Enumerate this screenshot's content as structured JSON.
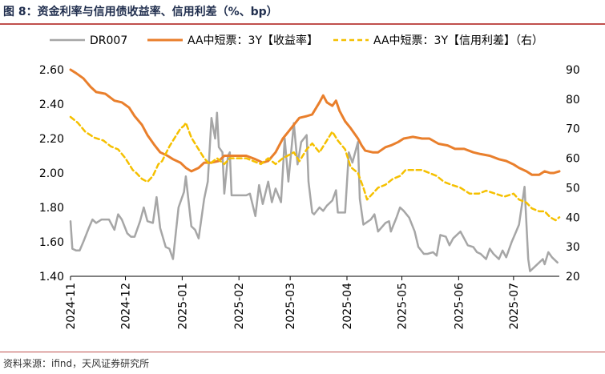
{
  "figure": {
    "title": "图 8：资金利率与信用债收益率、信用利差（%、bp）",
    "source": "资料来源：ifind，天风证券研究所"
  },
  "chart_data": {
    "type": "line",
    "title": "资金利率与信用债收益率、信用利差（%、bp）",
    "x_tick_labels": [
      "2024-11",
      "2024-12",
      "2025-01",
      "2025-02",
      "2025-03",
      "2025-04",
      "2025-05",
      "2025-06",
      "2025-07"
    ],
    "x_range": [
      "2024-11-01",
      "2025-07-26"
    ],
    "y_left": {
      "range": [
        1.4,
        2.6
      ],
      "ticks": [
        "1.40",
        "1.60",
        "1.80",
        "2.00",
        "2.20",
        "2.40",
        "2.60"
      ]
    },
    "y_right": {
      "range": [
        20,
        90
      ],
      "ticks": [
        "20",
        "30",
        "40",
        "50",
        "60",
        "70",
        "80",
        "90"
      ]
    },
    "grid": false,
    "legend_position": "top",
    "series": [
      {
        "name": "DR007",
        "axis": "left",
        "color": "#a6a6a6",
        "style": "solid",
        "points": [
          [
            "2024-11-01",
            1.72
          ],
          [
            "2024-11-02",
            1.56
          ],
          [
            "2024-11-04",
            1.55
          ],
          [
            "2024-11-06",
            1.55
          ],
          [
            "2024-11-08",
            1.6
          ],
          [
            "2024-11-11",
            1.68
          ],
          [
            "2024-11-13",
            1.73
          ],
          [
            "2024-11-15",
            1.71
          ],
          [
            "2024-11-18",
            1.73
          ],
          [
            "2024-11-20",
            1.73
          ],
          [
            "2024-11-22",
            1.73
          ],
          [
            "2024-11-25",
            1.67
          ],
          [
            "2024-11-27",
            1.76
          ],
          [
            "2024-11-29",
            1.73
          ],
          [
            "2024-12-02",
            1.65
          ],
          [
            "2024-12-04",
            1.63
          ],
          [
            "2024-12-06",
            1.63
          ],
          [
            "2024-12-09",
            1.72
          ],
          [
            "2024-12-11",
            1.8
          ],
          [
            "2024-12-13",
            1.72
          ],
          [
            "2024-12-16",
            1.71
          ],
          [
            "2024-12-18",
            1.86
          ],
          [
            "2024-12-20",
            1.68
          ],
          [
            "2024-12-23",
            1.57
          ],
          [
            "2024-12-25",
            1.56
          ],
          [
            "2024-12-27",
            1.5
          ],
          [
            "2024-12-30",
            1.8
          ],
          [
            "2025-01-02",
            1.89
          ],
          [
            "2025-01-03",
            1.98
          ],
          [
            "2025-01-06",
            1.69
          ],
          [
            "2025-01-08",
            1.67
          ],
          [
            "2025-01-10",
            1.62
          ],
          [
            "2025-01-13",
            1.85
          ],
          [
            "2025-01-15",
            1.95
          ],
          [
            "2025-01-17",
            2.32
          ],
          [
            "2025-01-19",
            2.2
          ],
          [
            "2025-01-20",
            2.35
          ],
          [
            "2025-01-21",
            2.15
          ],
          [
            "2025-01-23",
            2.12
          ],
          [
            "2025-01-24",
            1.88
          ],
          [
            "2025-01-26",
            2.1
          ],
          [
            "2025-01-27",
            2.12
          ],
          [
            "2025-01-28",
            1.87
          ],
          [
            "2025-02-01",
            1.87
          ],
          [
            "2025-02-05",
            1.87
          ],
          [
            "2025-02-07",
            1.88
          ],
          [
            "2025-02-10",
            1.75
          ],
          [
            "2025-02-12",
            1.93
          ],
          [
            "2025-02-14",
            1.82
          ],
          [
            "2025-02-17",
            1.95
          ],
          [
            "2025-02-19",
            1.83
          ],
          [
            "2025-02-21",
            1.91
          ],
          [
            "2025-02-24",
            1.83
          ],
          [
            "2025-02-26",
            2.2
          ],
          [
            "2025-02-28",
            1.95
          ],
          [
            "2025-03-03",
            2.29
          ],
          [
            "2025-03-05",
            2.05
          ],
          [
            "2025-03-07",
            2.18
          ],
          [
            "2025-03-10",
            2.22
          ],
          [
            "2025-03-11",
            1.95
          ],
          [
            "2025-03-13",
            1.77
          ],
          [
            "2025-03-14",
            1.76
          ],
          [
            "2025-03-17",
            1.8
          ],
          [
            "2025-03-19",
            1.78
          ],
          [
            "2025-03-21",
            1.81
          ],
          [
            "2025-03-24",
            1.84
          ],
          [
            "2025-03-26",
            1.9
          ],
          [
            "2025-03-27",
            1.77
          ],
          [
            "2025-03-31",
            1.77
          ],
          [
            "2025-04-02",
            2.12
          ],
          [
            "2025-04-04",
            2.06
          ],
          [
            "2025-04-07",
            2.18
          ],
          [
            "2025-04-08",
            1.85
          ],
          [
            "2025-04-10",
            1.7
          ],
          [
            "2025-04-14",
            1.73
          ],
          [
            "2025-04-16",
            1.76
          ],
          [
            "2025-04-18",
            1.66
          ],
          [
            "2025-04-22",
            1.71
          ],
          [
            "2025-04-24",
            1.72
          ],
          [
            "2025-04-25",
            1.66
          ],
          [
            "2025-04-28",
            1.74
          ],
          [
            "2025-04-30",
            1.8
          ],
          [
            "2025-05-02",
            1.78
          ],
          [
            "2025-05-05",
            1.74
          ],
          [
            "2025-05-08",
            1.66
          ],
          [
            "2025-05-10",
            1.57
          ],
          [
            "2025-05-13",
            1.53
          ],
          [
            "2025-05-15",
            1.53
          ],
          [
            "2025-05-18",
            1.54
          ],
          [
            "2025-05-20",
            1.52
          ],
          [
            "2025-05-22",
            1.64
          ],
          [
            "2025-05-25",
            1.63
          ],
          [
            "2025-05-27",
            1.58
          ],
          [
            "2025-05-29",
            1.62
          ],
          [
            "2025-06-02",
            1.66
          ],
          [
            "2025-06-04",
            1.62
          ],
          [
            "2025-06-06",
            1.58
          ],
          [
            "2025-06-09",
            1.57
          ],
          [
            "2025-06-11",
            1.54
          ],
          [
            "2025-06-13",
            1.53
          ],
          [
            "2025-06-16",
            1.5
          ],
          [
            "2025-06-18",
            1.56
          ],
          [
            "2025-06-20",
            1.53
          ],
          [
            "2025-06-23",
            1.5
          ],
          [
            "2025-06-25",
            1.55
          ],
          [
            "2025-06-27",
            1.51
          ],
          [
            "2025-06-30",
            1.6
          ],
          [
            "2025-07-02",
            1.65
          ],
          [
            "2025-07-04",
            1.7
          ],
          [
            "2025-07-07",
            1.92
          ],
          [
            "2025-07-09",
            1.5
          ],
          [
            "2025-07-10",
            1.43
          ],
          [
            "2025-07-12",
            1.45
          ],
          [
            "2025-07-15",
            1.48
          ],
          [
            "2025-07-17",
            1.5
          ],
          [
            "2025-07-18",
            1.47
          ],
          [
            "2025-07-20",
            1.54
          ],
          [
            "2025-07-22",
            1.51
          ],
          [
            "2025-07-25",
            1.48
          ]
        ]
      },
      {
        "name": "AA中短票：3Y【收益率】",
        "axis": "left",
        "color": "#e97f2c",
        "style": "solid",
        "points": [
          [
            "2024-11-01",
            2.6
          ],
          [
            "2024-11-04",
            2.58
          ],
          [
            "2024-11-08",
            2.55
          ],
          [
            "2024-11-12",
            2.5
          ],
          [
            "2024-11-15",
            2.47
          ],
          [
            "2024-11-20",
            2.46
          ],
          [
            "2024-11-25",
            2.42
          ],
          [
            "2024-11-29",
            2.41
          ],
          [
            "2024-12-03",
            2.38
          ],
          [
            "2024-12-06",
            2.33
          ],
          [
            "2024-12-10",
            2.28
          ],
          [
            "2024-12-13",
            2.22
          ],
          [
            "2024-12-17",
            2.16
          ],
          [
            "2024-12-20",
            2.12
          ],
          [
            "2024-12-24",
            2.1
          ],
          [
            "2024-12-27",
            2.08
          ],
          [
            "2024-12-31",
            2.06
          ],
          [
            "2025-01-03",
            2.03
          ],
          [
            "2025-01-06",
            2.01
          ],
          [
            "2025-01-10",
            2.03
          ],
          [
            "2025-01-13",
            2.06
          ],
          [
            "2025-01-17",
            2.06
          ],
          [
            "2025-01-21",
            2.07
          ],
          [
            "2025-01-24",
            2.1
          ],
          [
            "2025-01-27",
            2.1
          ],
          [
            "2025-02-05",
            2.1
          ],
          [
            "2025-02-10",
            2.08
          ],
          [
            "2025-02-14",
            2.06
          ],
          [
            "2025-02-17",
            2.07
          ],
          [
            "2025-02-21",
            2.12
          ],
          [
            "2025-02-25",
            2.2
          ],
          [
            "2025-02-28",
            2.24
          ],
          [
            "2025-03-03",
            2.28
          ],
          [
            "2025-03-06",
            2.32
          ],
          [
            "2025-03-10",
            2.33
          ],
          [
            "2025-03-13",
            2.34
          ],
          [
            "2025-03-17",
            2.41
          ],
          [
            "2025-03-19",
            2.45
          ],
          [
            "2025-03-21",
            2.41
          ],
          [
            "2025-03-24",
            2.39
          ],
          [
            "2025-03-26",
            2.42
          ],
          [
            "2025-03-28",
            2.36
          ],
          [
            "2025-03-31",
            2.3
          ],
          [
            "2025-04-03",
            2.26
          ],
          [
            "2025-04-07",
            2.2
          ],
          [
            "2025-04-09",
            2.16
          ],
          [
            "2025-04-11",
            2.13
          ],
          [
            "2025-04-15",
            2.12
          ],
          [
            "2025-04-18",
            2.12
          ],
          [
            "2025-04-22",
            2.15
          ],
          [
            "2025-04-25",
            2.16
          ],
          [
            "2025-04-29",
            2.18
          ],
          [
            "2025-05-02",
            2.2
          ],
          [
            "2025-05-07",
            2.21
          ],
          [
            "2025-05-12",
            2.2
          ],
          [
            "2025-05-16",
            2.2
          ],
          [
            "2025-05-21",
            2.17
          ],
          [
            "2025-05-26",
            2.16
          ],
          [
            "2025-05-30",
            2.14
          ],
          [
            "2025-06-04",
            2.14
          ],
          [
            "2025-06-09",
            2.12
          ],
          [
            "2025-06-13",
            2.11
          ],
          [
            "2025-06-18",
            2.1
          ],
          [
            "2025-06-23",
            2.08
          ],
          [
            "2025-06-27",
            2.07
          ],
          [
            "2025-07-01",
            2.05
          ],
          [
            "2025-07-04",
            2.03
          ],
          [
            "2025-07-08",
            2.01
          ],
          [
            "2025-07-11",
            1.99
          ],
          [
            "2025-07-15",
            1.99
          ],
          [
            "2025-07-18",
            2.01
          ],
          [
            "2025-07-21",
            2.0
          ],
          [
            "2025-07-23",
            2.0
          ],
          [
            "2025-07-26",
            2.01
          ]
        ]
      },
      {
        "name": "AA中短票：3Y【信用利差】（右）",
        "axis": "right",
        "color": "#f5c000",
        "style": "dashed",
        "points": [
          [
            "2024-11-01",
            74
          ],
          [
            "2024-11-05",
            72
          ],
          [
            "2024-11-09",
            69
          ],
          [
            "2024-11-14",
            67
          ],
          [
            "2024-11-19",
            66
          ],
          [
            "2024-11-23",
            64
          ],
          [
            "2024-11-27",
            63
          ],
          [
            "2024-12-01",
            60
          ],
          [
            "2024-12-05",
            56
          ],
          [
            "2024-12-07",
            55
          ],
          [
            "2024-12-10",
            53
          ],
          [
            "2024-12-13",
            52
          ],
          [
            "2024-12-16",
            54
          ],
          [
            "2024-12-19",
            58
          ],
          [
            "2024-12-21",
            59
          ],
          [
            "2024-12-25",
            64
          ],
          [
            "2024-12-28",
            67
          ],
          [
            "2024-12-31",
            70
          ],
          [
            "2025-01-02",
            71
          ],
          [
            "2025-01-03",
            72
          ],
          [
            "2025-01-06",
            67
          ],
          [
            "2025-01-09",
            64
          ],
          [
            "2025-01-13",
            60
          ],
          [
            "2025-01-16",
            58
          ],
          [
            "2025-01-20",
            60
          ],
          [
            "2025-01-24",
            58
          ],
          [
            "2025-01-27",
            60
          ],
          [
            "2025-02-05",
            60
          ],
          [
            "2025-02-09",
            59
          ],
          [
            "2025-02-13",
            58
          ],
          [
            "2025-02-17",
            60
          ],
          [
            "2025-02-21",
            58
          ],
          [
            "2025-02-25",
            60
          ],
          [
            "2025-02-28",
            61
          ],
          [
            "2025-03-03",
            62
          ],
          [
            "2025-03-06",
            59
          ],
          [
            "2025-03-10",
            63
          ],
          [
            "2025-03-13",
            65
          ],
          [
            "2025-03-17",
            62
          ],
          [
            "2025-03-20",
            65
          ],
          [
            "2025-03-24",
            69
          ],
          [
            "2025-03-27",
            66
          ],
          [
            "2025-03-31",
            63
          ],
          [
            "2025-04-03",
            57
          ],
          [
            "2025-04-07",
            55
          ],
          [
            "2025-04-10",
            50
          ],
          [
            "2025-04-12",
            46
          ],
          [
            "2025-04-15",
            48
          ],
          [
            "2025-04-18",
            50
          ],
          [
            "2025-04-22",
            51
          ],
          [
            "2025-04-26",
            53
          ],
          [
            "2025-04-30",
            54
          ],
          [
            "2025-05-03",
            56
          ],
          [
            "2025-05-07",
            56
          ],
          [
            "2025-05-12",
            56
          ],
          [
            "2025-05-16",
            55
          ],
          [
            "2025-05-20",
            54
          ],
          [
            "2025-05-24",
            52
          ],
          [
            "2025-05-28",
            51
          ],
          [
            "2025-06-02",
            50
          ],
          [
            "2025-06-07",
            48
          ],
          [
            "2025-06-12",
            48
          ],
          [
            "2025-06-16",
            49
          ],
          [
            "2025-06-21",
            48
          ],
          [
            "2025-06-26",
            47
          ],
          [
            "2025-07-01",
            48
          ],
          [
            "2025-07-04",
            46
          ],
          [
            "2025-07-08",
            45
          ],
          [
            "2025-07-11",
            43
          ],
          [
            "2025-07-15",
            42
          ],
          [
            "2025-07-18",
            42
          ],
          [
            "2025-07-21",
            40
          ],
          [
            "2025-07-24",
            39
          ],
          [
            "2025-07-26",
            40
          ]
        ]
      }
    ]
  }
}
